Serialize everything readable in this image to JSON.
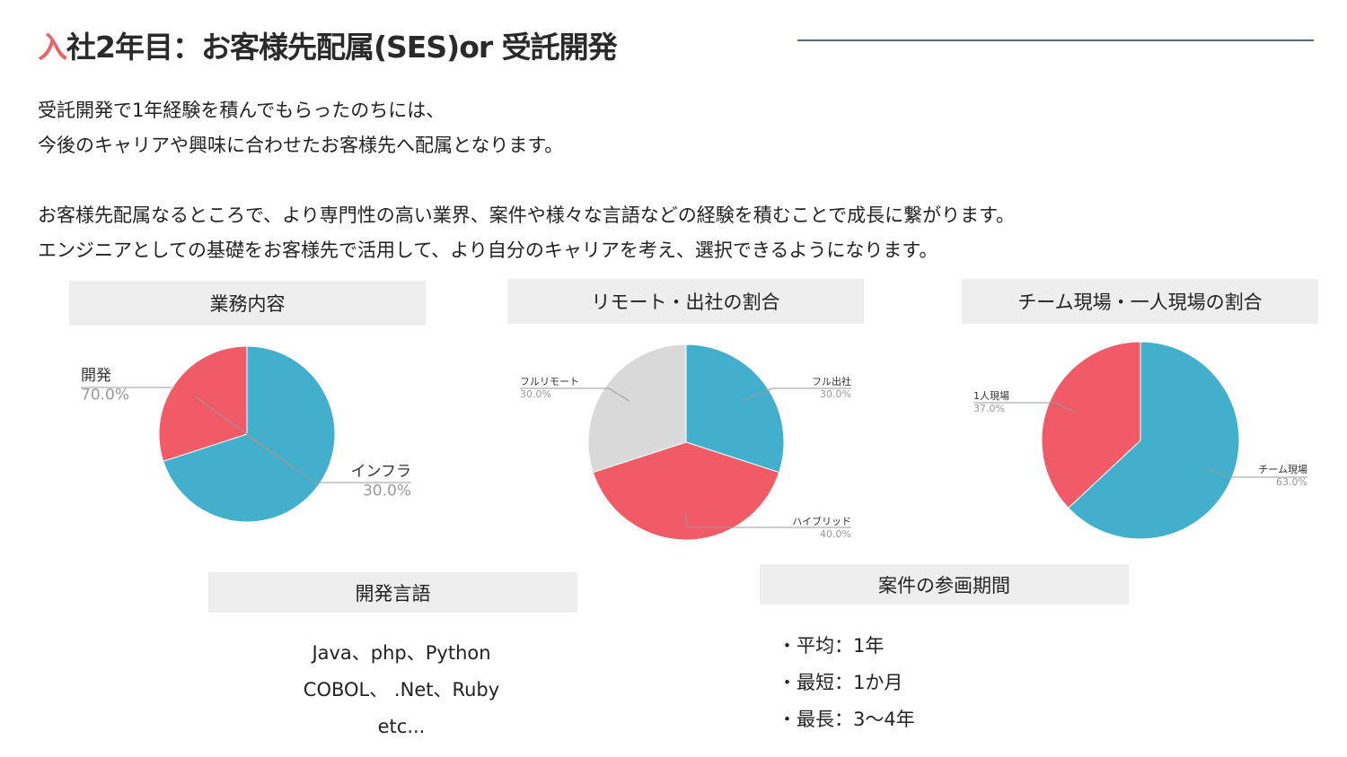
{
  "header": {
    "title_accent": "入",
    "title_rest": "社2年目：お客様先配属(SES)or 受託開発"
  },
  "intro": {
    "line1": "受託開発で1年経験を積んでもらったのちには、",
    "line2": "今後のキャリアや興味に合わせたお客様先へ配属となります。",
    "line3": "お客様先配属なるところで、より専門性の高い業界、案件や様々な言語などの経験を積むことで成長に繋がります。",
    "line4": "エンジニアとしての基礎をお客様先で活用して、より自分のキャリアを考え、選択できるようになります。"
  },
  "colors": {
    "blue": "#42b0cc",
    "red": "#f15b67",
    "gray": "#d9d9d9",
    "label_text": "#333333",
    "pct_text": "#999999"
  },
  "chart_data": [
    {
      "type": "pie",
      "title": "業務内容",
      "slices": [
        {
          "label": "開発",
          "value": 70.0,
          "pct_label": "70.0%",
          "color": "#42b0cc"
        },
        {
          "label": "インフラ",
          "value": 30.0,
          "pct_label": "30.0%",
          "color": "#f15b67"
        }
      ]
    },
    {
      "type": "pie",
      "title": "リモート・出社の割合",
      "slices": [
        {
          "label": "フル出社",
          "value": 30.0,
          "pct_label": "30.0%",
          "color": "#42b0cc"
        },
        {
          "label": "ハイブリッド",
          "value": 40.0,
          "pct_label": "40.0%",
          "color": "#f15b67"
        },
        {
          "label": "フルリモート",
          "value": 30.0,
          "pct_label": "30.0%",
          "color": "#d9d9d9"
        }
      ]
    },
    {
      "type": "pie",
      "title": "チーム現場・一人現場の割合",
      "slices": [
        {
          "label": "チーム現場",
          "value": 63.0,
          "pct_label": "63.0%",
          "color": "#42b0cc"
        },
        {
          "label": "1人現場",
          "value": 37.0,
          "pct_label": "37.0%",
          "color": "#f15b67"
        }
      ]
    }
  ],
  "languages": {
    "title": "開発言語",
    "lines": [
      "Java、php、Python",
      "COBOL、 .Net、Ruby",
      "etc..."
    ]
  },
  "period": {
    "title": "案件の参画期間",
    "items": [
      "・平均：1年",
      "・最短：1か月",
      "・最長：3〜4年"
    ]
  }
}
